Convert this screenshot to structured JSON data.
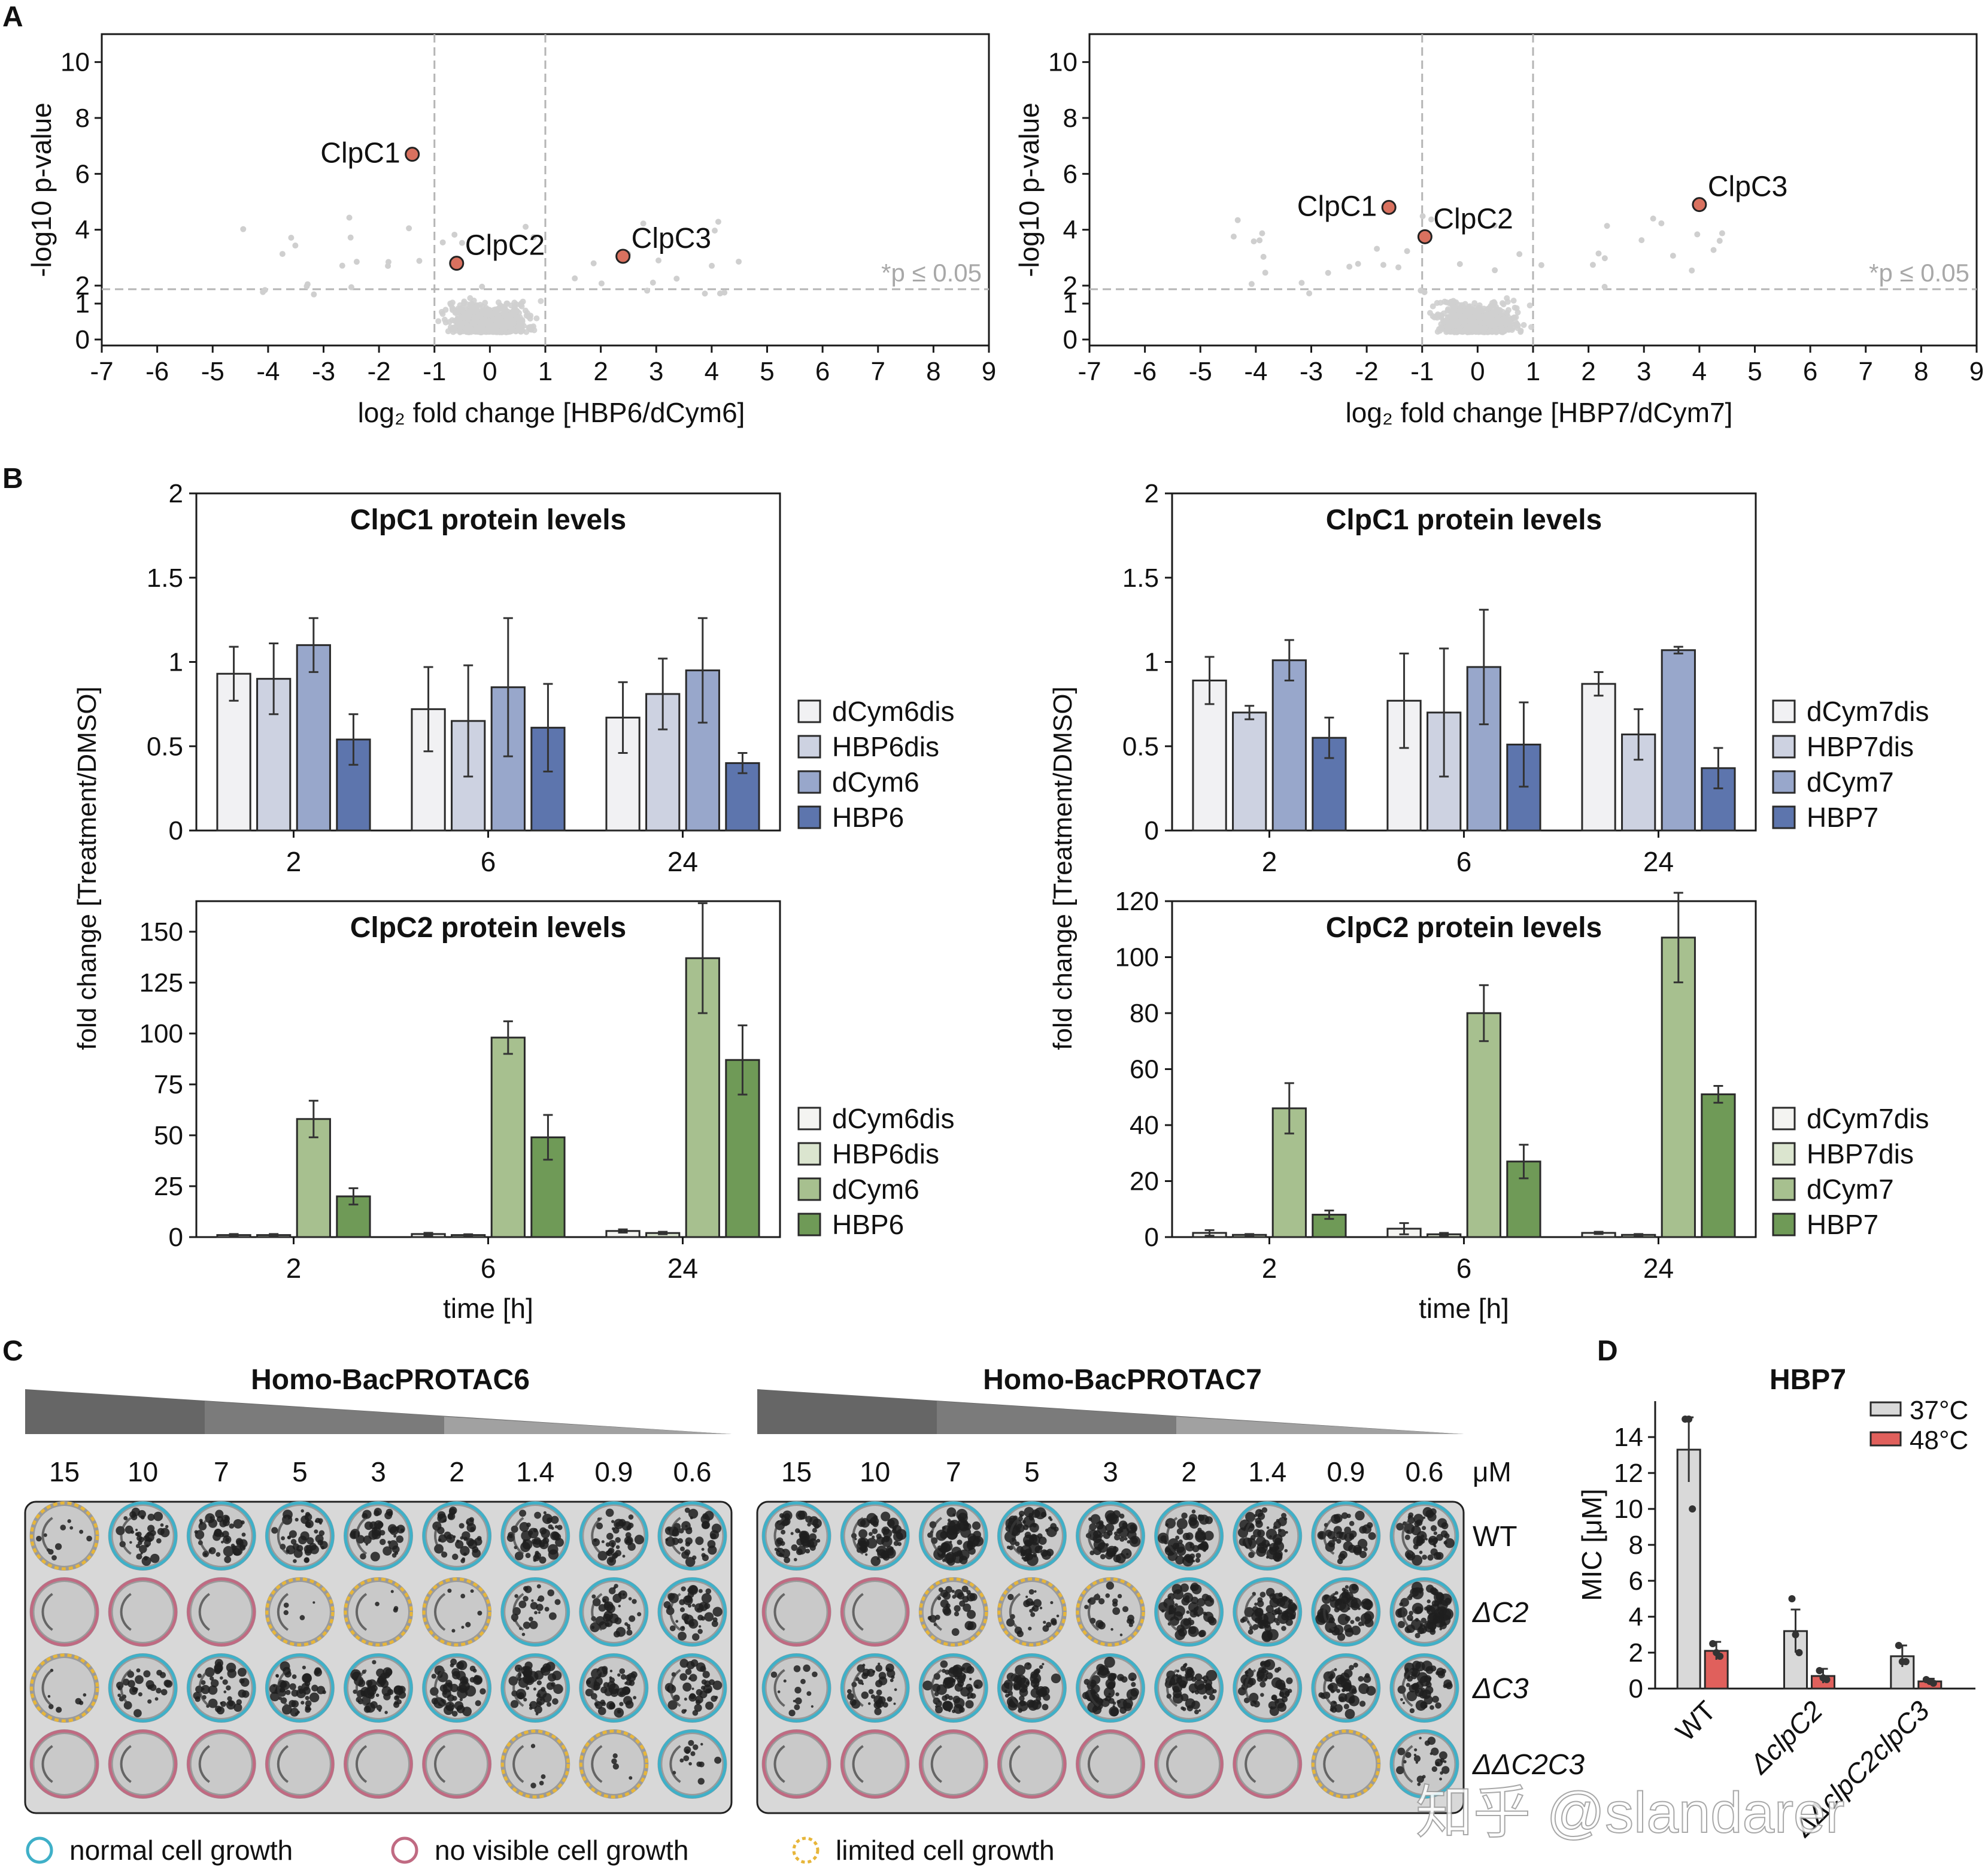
{
  "panel_letters": [
    "A",
    "B",
    "C",
    "D"
  ],
  "colors": {
    "axis": "#1a1a1a",
    "volcano_bg_points": "#cfcfcf",
    "volcano_hits": "#d9715f",
    "dashed": "#b5b5b5",
    "sig_text": "#a8a8a8",
    "blue": [
      "#f1f1f3",
      "#cdd2e1",
      "#98a7cb",
      "#5d75ad"
    ],
    "green": [
      "#f4f4f1",
      "#dbe5cf",
      "#a7c08f",
      "#6f9a57"
    ],
    "mic_37": "#d9d9d9",
    "mic_48": "#e0605c",
    "ring_normal": "#3fb0c8",
    "ring_none": "#c06a82",
    "ring_limited": "#e7b63a"
  },
  "chart_data": [
    {
      "id": "volcano-hbp6",
      "type": "scatter",
      "title": "",
      "xlabel": "log₂ fold change [HBP6/dCym6]",
      "ylabel": "-log10 p-value",
      "xlim": [
        -7,
        9
      ],
      "ylim": [
        0,
        11
      ],
      "xticks": [
        "-7",
        "-6",
        "-5",
        "-4",
        "-3",
        "-2",
        "-1",
        "0",
        "1",
        "2",
        "3",
        "4",
        "5",
        "6",
        "7",
        "8",
        "9"
      ],
      "yticks": [
        0,
        1,
        2,
        4,
        6,
        8,
        10
      ],
      "ytick_labels": [
        "0",
        "1",
        "2",
        "4",
        "6",
        "8",
        "10"
      ],
      "y_axis_break": [
        1,
        2
      ],
      "threshold_y": 1.3,
      "threshold_label": "*p ≤ 0.05",
      "vlines_x": [
        -1,
        1
      ],
      "highlighted": [
        {
          "label": "ClpC1",
          "x": -1.4,
          "y": 6.7
        },
        {
          "label": "ClpC2",
          "x": -0.6,
          "y": 2.8
        },
        {
          "label": "ClpC3",
          "x": 2.4,
          "y": 3.05
        }
      ],
      "background_points_note": "grey background proteins, cloud centred near 0"
    },
    {
      "id": "volcano-hbp7",
      "type": "scatter",
      "title": "",
      "xlabel": "log₂ fold change [HBP7/dCym7]",
      "ylabel": "-log10 p-value",
      "xlim": [
        -7,
        9
      ],
      "ylim": [
        0,
        11
      ],
      "xticks": [
        "-7",
        "-6",
        "-5",
        "-4",
        "-3",
        "-2",
        "-1",
        "0",
        "1",
        "2",
        "3",
        "4",
        "5",
        "6",
        "7",
        "8",
        "9"
      ],
      "yticks": [
        0,
        1,
        2,
        4,
        6,
        8,
        10
      ],
      "ytick_labels": [
        "0",
        "1",
        "2",
        "4",
        "6",
        "8",
        "10"
      ],
      "y_axis_break": [
        1,
        2
      ],
      "threshold_y": 1.3,
      "threshold_label": "*p ≤ 0.05",
      "vlines_x": [
        -1,
        1
      ],
      "highlighted": [
        {
          "label": "ClpC1",
          "x": -1.6,
          "y": 4.8
        },
        {
          "label": "ClpC2",
          "x": -0.95,
          "y": 3.75
        },
        {
          "label": "ClpC3",
          "x": 4.0,
          "y": 4.9
        }
      ],
      "background_points_note": "grey background proteins, cloud centred near 0"
    },
    {
      "id": "bar-clpc1-hbp6",
      "type": "bar",
      "title": "ClpC1 protein levels",
      "categories": [
        "2",
        "6",
        "24"
      ],
      "ylim": [
        0,
        2
      ],
      "yticks": [
        "0",
        "0.5",
        "1",
        "1.5",
        "2"
      ],
      "palette": "blue",
      "series": [
        {
          "name": "dCym6dis",
          "values": [
            0.93,
            0.72,
            0.67
          ],
          "errors": [
            0.16,
            0.25,
            0.21
          ]
        },
        {
          "name": "HBP6dis",
          "values": [
            0.9,
            0.65,
            0.81
          ],
          "errors": [
            0.21,
            0.33,
            0.21
          ]
        },
        {
          "name": "dCym6",
          "values": [
            1.1,
            0.85,
            0.95
          ],
          "errors": [
            0.16,
            0.41,
            0.31
          ]
        },
        {
          "name": "HBP6",
          "values": [
            0.54,
            0.61,
            0.4
          ],
          "errors": [
            0.15,
            0.26,
            0.06
          ]
        }
      ]
    },
    {
      "id": "bar-clpc2-hbp6",
      "type": "bar",
      "title": "ClpC2 protein levels",
      "categories": [
        "2",
        "6",
        "24"
      ],
      "ylim": [
        0,
        165
      ],
      "yticks": [
        "0",
        "25",
        "50",
        "75",
        "100",
        "125",
        "150"
      ],
      "palette": "green",
      "xlabel": "time [h]",
      "series": [
        {
          "name": "dCym6dis",
          "values": [
            1.0,
            1.5,
            3.0
          ],
          "errors": [
            0.5,
            0.6,
            0.8
          ]
        },
        {
          "name": "HBP6dis",
          "values": [
            1.0,
            1.0,
            2.0
          ],
          "errors": [
            0.5,
            0.4,
            0.6
          ]
        },
        {
          "name": "dCym6",
          "values": [
            58,
            98,
            137
          ],
          "errors": [
            9,
            8,
            27
          ]
        },
        {
          "name": "HBP6",
          "values": [
            20,
            49,
            87
          ],
          "errors": [
            4,
            11,
            17
          ]
        }
      ]
    },
    {
      "id": "bar-clpc1-hbp7",
      "type": "bar",
      "title": "ClpC1 protein levels",
      "categories": [
        "2",
        "6",
        "24"
      ],
      "ylim": [
        0,
        2
      ],
      "yticks": [
        "0",
        "0.5",
        "1",
        "1.5",
        "2"
      ],
      "palette": "blue",
      "series": [
        {
          "name": "dCym7dis",
          "values": [
            0.89,
            0.77,
            0.87
          ],
          "errors": [
            0.14,
            0.28,
            0.07
          ]
        },
        {
          "name": "HBP7dis",
          "values": [
            0.7,
            0.7,
            0.57
          ],
          "errors": [
            0.04,
            0.38,
            0.15
          ]
        },
        {
          "name": "dCym7",
          "values": [
            1.01,
            0.97,
            1.07
          ],
          "errors": [
            0.12,
            0.34,
            0.02
          ]
        },
        {
          "name": "HBP7",
          "values": [
            0.55,
            0.51,
            0.37
          ],
          "errors": [
            0.12,
            0.25,
            0.12
          ]
        }
      ]
    },
    {
      "id": "bar-clpc2-hbp7",
      "type": "bar",
      "title": "ClpC2 protein levels",
      "categories": [
        "2",
        "6",
        "24"
      ],
      "ylim": [
        0,
        120
      ],
      "yticks": [
        "0",
        "20",
        "40",
        "60",
        "80",
        "100",
        "120"
      ],
      "palette": "green",
      "xlabel": "time [h]",
      "series": [
        {
          "name": "dCym7dis",
          "values": [
            1.5,
            3.0,
            1.5
          ],
          "errors": [
            1.0,
            2.0,
            0.4
          ]
        },
        {
          "name": "HBP7dis",
          "values": [
            0.8,
            1.0,
            0.8
          ],
          "errors": [
            0.3,
            0.5,
            0.3
          ]
        },
        {
          "name": "dCym7",
          "values": [
            46,
            80,
            107
          ],
          "errors": [
            9,
            10,
            16
          ]
        },
        {
          "name": "HBP7",
          "values": [
            8,
            27,
            51
          ],
          "errors": [
            1.5,
            6,
            3
          ]
        }
      ]
    },
    {
      "id": "bar-mic-hbp7",
      "type": "bar",
      "title": "HBP7",
      "ylabel": "MIC [μM]",
      "ylim": [
        0,
        16
      ],
      "yticks": [
        "0",
        "2",
        "4",
        "6",
        "8",
        "10",
        "12",
        "14"
      ],
      "categories": [
        "WT",
        "ΔclpC2",
        "ΔΔclpC2clpC3"
      ],
      "series": [
        {
          "name": "37°C",
          "values": [
            13.3,
            3.2,
            1.8
          ],
          "errors": [
            1.8,
            1.2,
            0.6
          ],
          "points": [
            [
              15,
              15,
              10
            ],
            [
              5,
              3,
              2
            ],
            [
              2.4,
              1.5,
              1.5
            ]
          ]
        },
        {
          "name": "48°C",
          "values": [
            2.1,
            0.7,
            0.4
          ],
          "errors": [
            0.5,
            0.4,
            0.15
          ],
          "points": [
            [
              2.5,
              2.0,
              1.8
            ],
            [
              1.0,
              0.6,
              0.5
            ],
            [
              0.5,
              0.4,
              0.3
            ]
          ]
        }
      ]
    }
  ],
  "ylabel_shared_B": "fold change [Treatment/DMSO]",
  "plates": {
    "left_title": "Homo-BacPROTAC6",
    "right_title": "Homo-BacPROTAC7",
    "concentrations": [
      "15",
      "10",
      "7",
      "5",
      "3",
      "2",
      "1.4",
      "0.9",
      "0.6"
    ],
    "unit": "μM",
    "row_labels": [
      "WT",
      "ΔC2",
      "ΔC3",
      "ΔΔC2C3"
    ],
    "left_states": [
      [
        "limited",
        "normal",
        "normal",
        "normal",
        "normal",
        "normal",
        "normal",
        "normal",
        "normal"
      ],
      [
        "none",
        "none",
        "none",
        "limited",
        "limited",
        "limited",
        "normal",
        "normal",
        "normal"
      ],
      [
        "limited",
        "normal",
        "normal",
        "normal",
        "normal",
        "normal",
        "normal",
        "normal",
        "normal"
      ],
      [
        "none",
        "none",
        "none",
        "none",
        "none",
        "none",
        "limited",
        "limited",
        "normal"
      ]
    ],
    "right_states": [
      [
        "normal",
        "normal",
        "normal",
        "normal",
        "normal",
        "normal",
        "normal",
        "normal",
        "normal"
      ],
      [
        "none",
        "none",
        "limited",
        "limited",
        "limited",
        "normal",
        "normal",
        "normal",
        "normal"
      ],
      [
        "normal",
        "normal",
        "normal",
        "normal",
        "normal",
        "normal",
        "normal",
        "normal",
        "normal"
      ],
      [
        "none",
        "none",
        "none",
        "none",
        "none",
        "none",
        "none",
        "limited",
        "normal"
      ]
    ],
    "left_density": [
      [
        0.15,
        0.55,
        0.65,
        0.6,
        0.55,
        0.6,
        0.65,
        0.6,
        0.55
      ],
      [
        0.0,
        0.0,
        0.0,
        0.05,
        0.05,
        0.1,
        0.35,
        0.55,
        0.6
      ],
      [
        0.1,
        0.4,
        0.55,
        0.7,
        0.7,
        0.75,
        0.75,
        0.7,
        0.55
      ],
      [
        0.0,
        0.0,
        0.0,
        0.0,
        0.0,
        0.0,
        0.05,
        0.05,
        0.2
      ]
    ],
    "right_density": [
      [
        0.65,
        0.75,
        0.85,
        0.85,
        0.8,
        0.75,
        0.75,
        0.55,
        0.7
      ],
      [
        0.0,
        0.0,
        0.45,
        0.35,
        0.3,
        0.75,
        0.85,
        0.85,
        0.9
      ],
      [
        0.2,
        0.55,
        0.75,
        0.75,
        0.8,
        0.75,
        0.7,
        0.7,
        0.75
      ],
      [
        0.0,
        0.0,
        0.0,
        0.0,
        0.0,
        0.0,
        0.0,
        0.0,
        0.35
      ]
    ],
    "legend": {
      "normal": "normal cell growth",
      "none": "no visible cell growth",
      "limited": "limited cell growth"
    }
  },
  "watermark": "知乎 @slandarer"
}
